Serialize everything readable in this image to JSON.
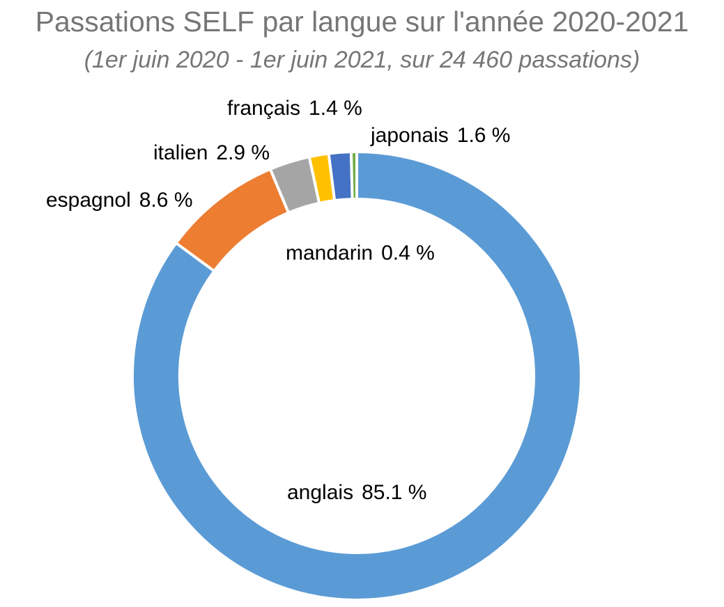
{
  "chart_data": {
    "type": "pie",
    "variant": "donut",
    "title": "Passations SELF par langue sur l'année 2020-2021",
    "subtitle": "(1er juin 2020 - 1er juin 2021, sur 24 460 passations)",
    "legend": "none",
    "slices": [
      {
        "name": "anglais",
        "value": 85.1,
        "label": "85.1 %",
        "color": "#5B9BD5"
      },
      {
        "name": "espagnol",
        "value": 8.6,
        "label": "8.6 %",
        "color": "#ED7D31"
      },
      {
        "name": "italien",
        "value": 2.9,
        "label": "2.9 %",
        "color": "#A5A5A5"
      },
      {
        "name": "français",
        "value": 1.4,
        "label": "1.4 %",
        "color": "#FFC000"
      },
      {
        "name": "japonais",
        "value": 1.6,
        "label": "1.6 %",
        "color": "#4472C4"
      },
      {
        "name": "mandarin",
        "value": 0.4,
        "label": "0.4 %",
        "color": "#70AD47"
      }
    ]
  }
}
